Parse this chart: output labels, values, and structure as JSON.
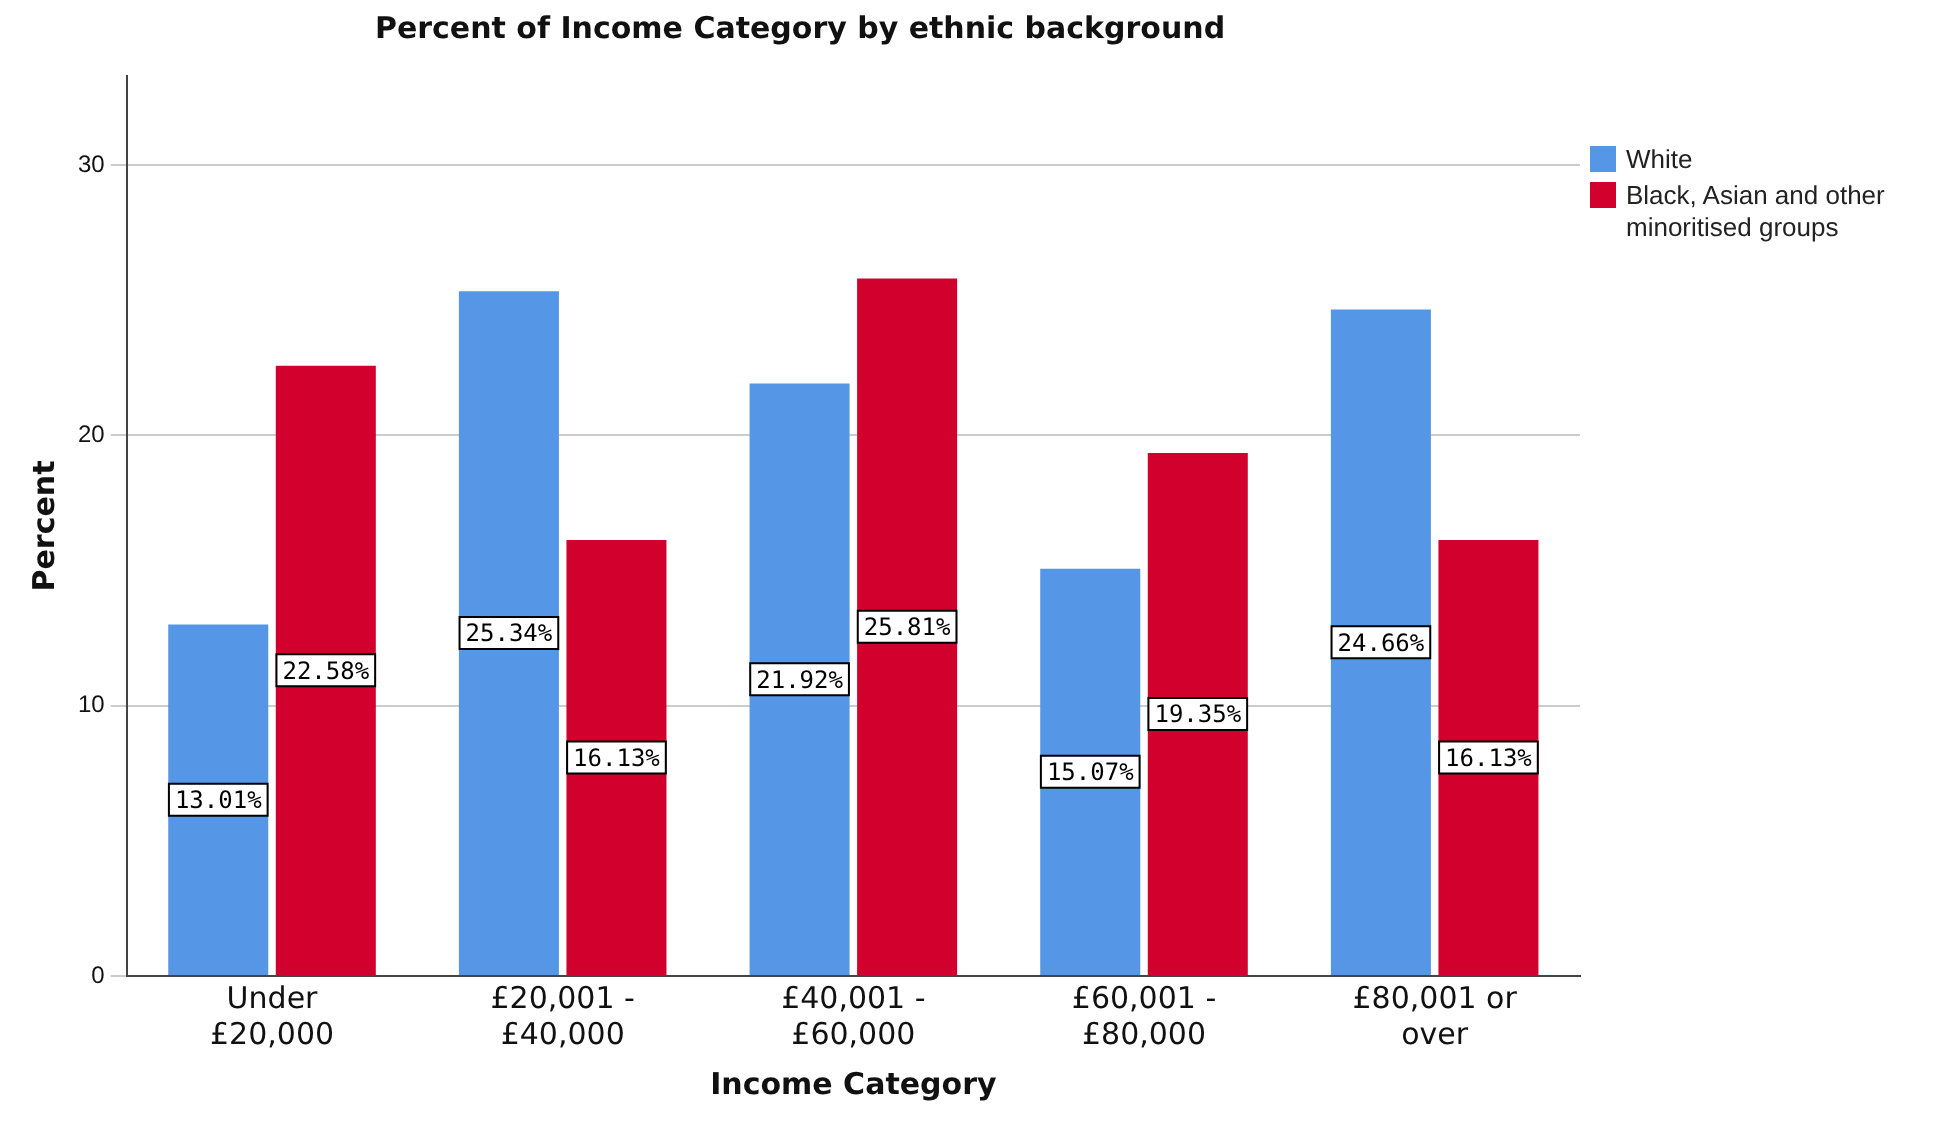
{
  "chart_data": {
    "type": "bar",
    "title": "Percent of Income Category by ethnic background",
    "xlabel": "Income Category",
    "ylabel": "Percent",
    "categories": [
      "Under £20,000",
      "£20,001 - £40,000",
      "£40,001 - £60,000",
      "£60,001 - £80,000",
      "£80,001 or over"
    ],
    "series": [
      {
        "name": "White",
        "color": "#5596e6",
        "values": [
          13.01,
          25.34,
          21.92,
          15.07,
          24.66
        ],
        "value_labels": [
          "13.01%",
          "25.34%",
          "21.92%",
          "15.07%",
          "24.66%"
        ]
      },
      {
        "name": "Black, Asian and other minoritised groups",
        "color": "#d2002c",
        "values": [
          22.58,
          16.13,
          25.81,
          19.35,
          16.13
        ],
        "value_labels": [
          "22.58%",
          "16.13%",
          "25.81%",
          "19.35%",
          "16.13%"
        ]
      }
    ],
    "ylim": [
      0,
      33.3
    ],
    "yticks": [
      0,
      10,
      20,
      30
    ],
    "grid": "y",
    "legend": "right"
  }
}
